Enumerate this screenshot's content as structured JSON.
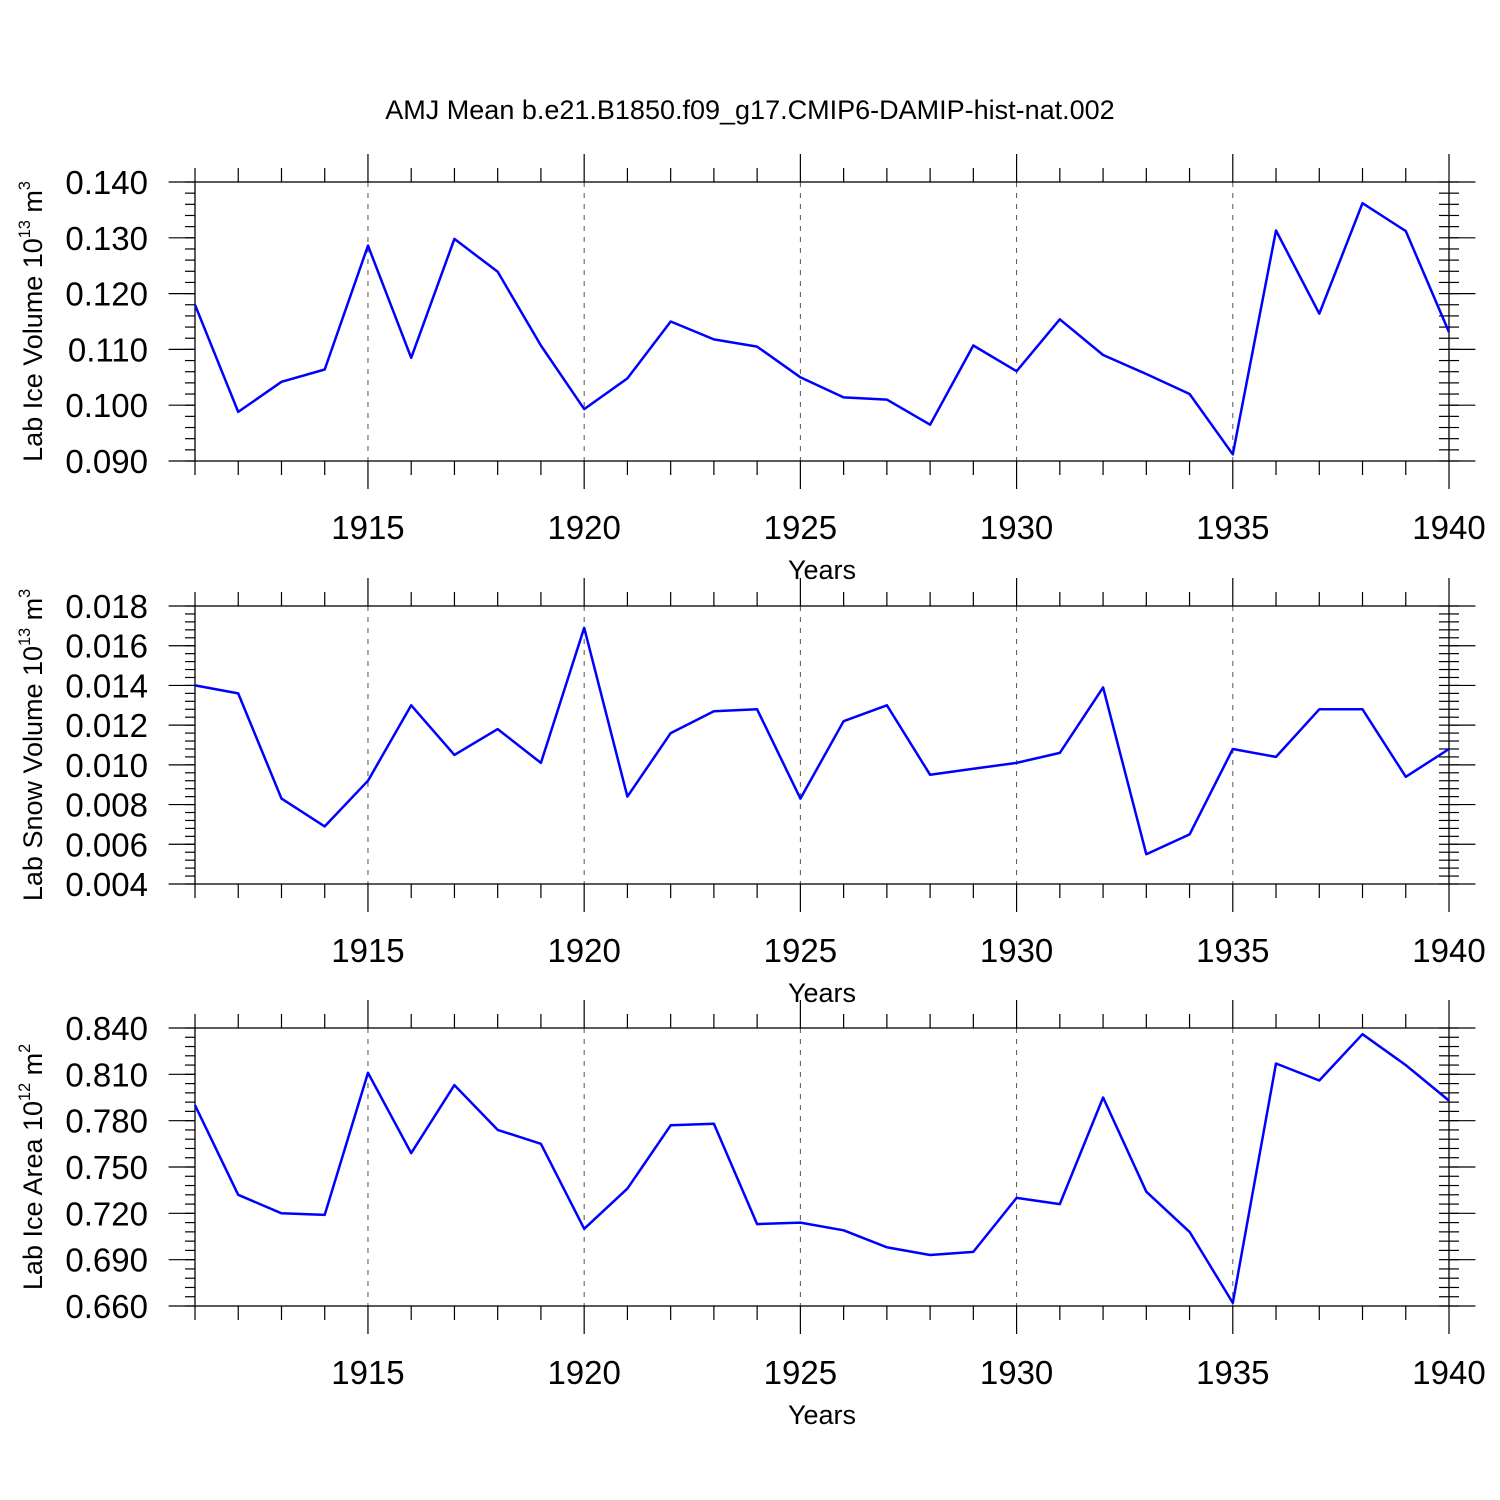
{
  "title": "AMJ Mean b.e21.B1850.f09_g17.CMIP6-DAMIP-hist-nat.002",
  "colors": {
    "series": "#0000ff",
    "axis": "#000000",
    "grid": "#555555",
    "background": "#ffffff"
  },
  "chart_data": [
    {
      "type": "line",
      "ylabel": {
        "main": "Lab Ice Volume 10",
        "exponent": "13",
        "unit": " m",
        "unit_exponent": "3"
      },
      "xlabel": "Years",
      "xlim": [
        1911,
        1940
      ],
      "ylim": [
        0.09,
        0.14
      ],
      "yticks": [
        "0.090",
        "0.100",
        "0.110",
        "0.120",
        "0.130",
        "0.140"
      ],
      "xticks": [
        "1915",
        "1920",
        "1925",
        "1930",
        "1935",
        "1940"
      ],
      "grid": "vertical dashed at major x ticks",
      "x": [
        1911,
        1912,
        1913,
        1914,
        1915,
        1916,
        1917,
        1918,
        1919,
        1920,
        1921,
        1922,
        1923,
        1924,
        1925,
        1926,
        1927,
        1928,
        1929,
        1930,
        1931,
        1932,
        1933,
        1934,
        1935,
        1936,
        1937,
        1938,
        1939,
        1940
      ],
      "values": [
        0.118,
        0.0988,
        0.1042,
        0.1064,
        0.1286,
        0.1085,
        0.1298,
        0.1239,
        0.1107,
        0.0993,
        0.1048,
        0.115,
        0.1118,
        0.1105,
        0.105,
        0.1014,
        0.101,
        0.0965,
        0.1107,
        0.1061,
        0.1154,
        0.109,
        0.1056,
        0.102,
        0.0912,
        0.1313,
        0.1164,
        0.1362,
        0.1312,
        0.1131
      ]
    },
    {
      "type": "line",
      "ylabel": {
        "main": "Lab Snow Volume 10",
        "exponent": "13",
        "unit": " m",
        "unit_exponent": "3"
      },
      "xlabel": "Years",
      "xlim": [
        1911,
        1940
      ],
      "ylim": [
        0.004,
        0.018
      ],
      "yticks": [
        "0.004",
        "0.006",
        "0.008",
        "0.010",
        "0.012",
        "0.014",
        "0.016",
        "0.018"
      ],
      "xticks": [
        "1915",
        "1920",
        "1925",
        "1930",
        "1935",
        "1940"
      ],
      "grid": "vertical dashed at major x ticks",
      "x": [
        1911,
        1912,
        1913,
        1914,
        1915,
        1916,
        1917,
        1918,
        1919,
        1920,
        1921,
        1922,
        1923,
        1924,
        1925,
        1926,
        1927,
        1928,
        1929,
        1930,
        1931,
        1932,
        1933,
        1934,
        1935,
        1936,
        1937,
        1938,
        1939,
        1940
      ],
      "values": [
        0.014,
        0.0136,
        0.0083,
        0.0069,
        0.0092,
        0.013,
        0.0105,
        0.0118,
        0.0101,
        0.0169,
        0.0084,
        0.0116,
        0.0127,
        0.0128,
        0.0083,
        0.0122,
        0.013,
        0.0095,
        0.0098,
        0.0101,
        0.0106,
        0.0139,
        0.0055,
        0.0065,
        0.0108,
        0.0104,
        0.0128,
        0.0128,
        0.0094,
        0.0108
      ]
    },
    {
      "type": "line",
      "ylabel": {
        "main": "Lab Ice Area 10",
        "exponent": "12",
        "unit": " m",
        "unit_exponent": "2"
      },
      "xlabel": "Years",
      "xlim": [
        1911,
        1940
      ],
      "ylim": [
        0.66,
        0.84
      ],
      "yticks": [
        "0.660",
        "0.690",
        "0.720",
        "0.750",
        "0.780",
        "0.810",
        "0.840"
      ],
      "xticks": [
        "1915",
        "1920",
        "1925",
        "1930",
        "1935",
        "1940"
      ],
      "grid": "vertical dashed at major x ticks",
      "x": [
        1911,
        1912,
        1913,
        1914,
        1915,
        1916,
        1917,
        1918,
        1919,
        1920,
        1921,
        1922,
        1923,
        1924,
        1925,
        1926,
        1927,
        1928,
        1929,
        1930,
        1931,
        1932,
        1933,
        1934,
        1935,
        1936,
        1937,
        1938,
        1939,
        1940
      ],
      "values": [
        0.79,
        0.732,
        0.72,
        0.719,
        0.811,
        0.759,
        0.803,
        0.774,
        0.765,
        0.71,
        0.736,
        0.777,
        0.778,
        0.713,
        0.714,
        0.709,
        0.698,
        0.693,
        0.695,
        0.73,
        0.726,
        0.795,
        0.734,
        0.708,
        0.662,
        0.817,
        0.806,
        0.836,
        0.816,
        0.793
      ]
    }
  ]
}
